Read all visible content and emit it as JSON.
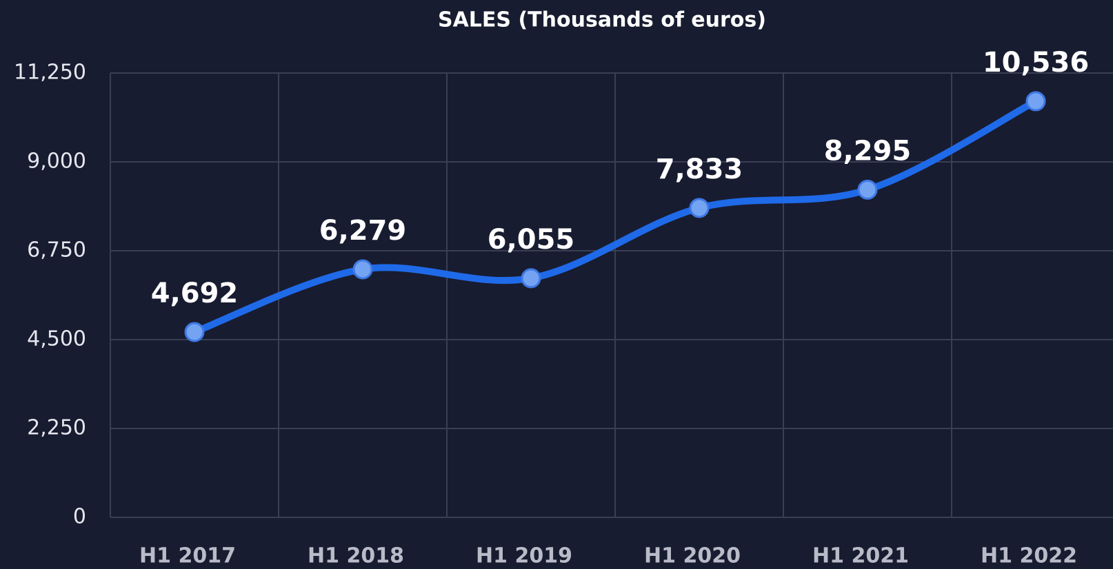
{
  "chart_data": {
    "type": "line",
    "title": "SALES (Thousands of euros)",
    "categories": [
      "H1 2017",
      "H1 2018",
      "H1 2019",
      "H1 2020",
      "H1 2021",
      "H1 2022"
    ],
    "series": [
      {
        "name": "Sales",
        "color": "#1f6ae8",
        "values": [
          4692,
          6279,
          6055,
          7833,
          8295,
          10536
        ],
        "value_labels": [
          "4,692",
          "6,279",
          "6,055",
          "7,833",
          "8,295",
          "10,536"
        ]
      }
    ],
    "ylim": [
      0,
      11250
    ],
    "yticks": [
      0,
      {
        "value": 2250,
        "label": "2,250"
      },
      {
        "value": 4500,
        "label": "4,500"
      },
      {
        "value": 6750,
        "label": "6,750"
      },
      {
        "value": 9000,
        "label": "9,000"
      },
      {
        "value": 11250,
        "label": "11,250"
      }
    ],
    "grid": true
  }
}
